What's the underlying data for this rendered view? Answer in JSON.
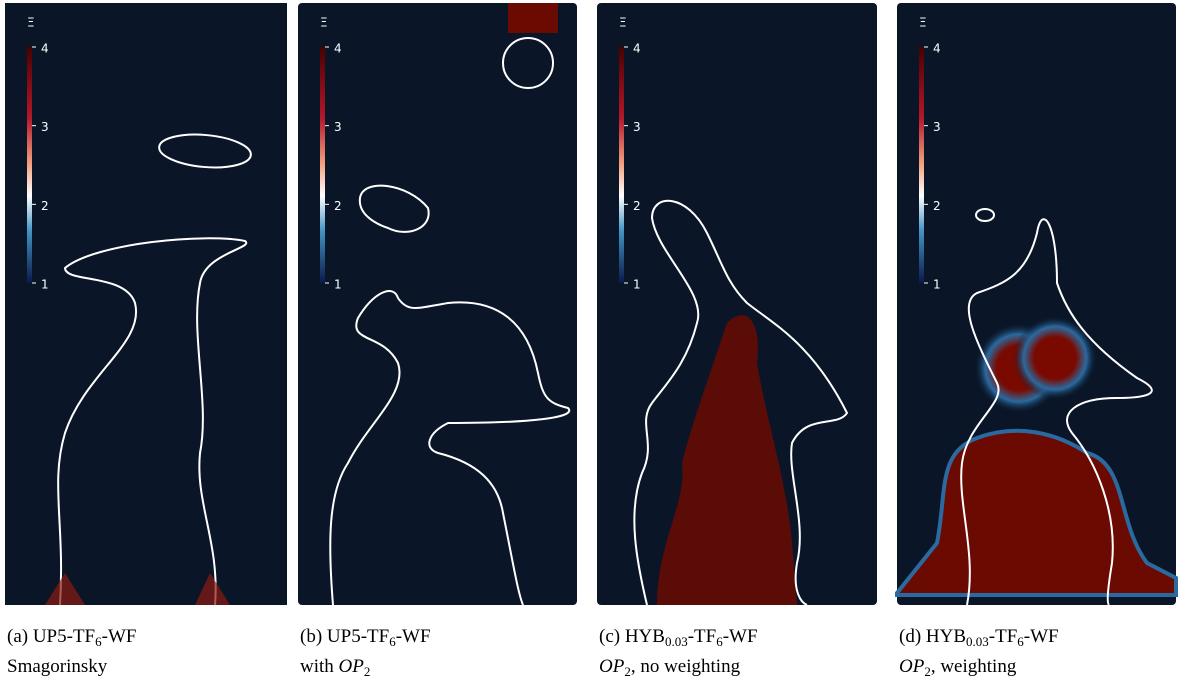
{
  "panels": [
    {
      "colorbar": {
        "label": "Ξ",
        "ticks": [
          4,
          3,
          2,
          1
        ]
      },
      "caption": [
        [
          {
            "text": "(a) UP5-TF"
          },
          {
            "text": "6",
            "sub": true
          },
          {
            "text": "-WF"
          }
        ],
        [
          {
            "text": "Smagorinsky"
          }
        ]
      ]
    },
    {
      "colorbar": {
        "label": "Ξ",
        "ticks": [
          4,
          3,
          2,
          1
        ]
      },
      "caption": [
        [
          {
            "text": "(b) UP5-TF"
          },
          {
            "text": "6",
            "sub": true
          },
          {
            "text": "-WF"
          }
        ],
        [
          {
            "text": "with "
          },
          {
            "text": "OP",
            "italic": true
          },
          {
            "text": "2",
            "sub": true
          }
        ]
      ]
    },
    {
      "colorbar": {
        "label": "Ξ",
        "ticks": [
          4,
          3,
          2,
          1
        ]
      },
      "caption": [
        [
          {
            "text": "(c) HYB"
          },
          {
            "text": "0.03",
            "sub": true
          },
          {
            "text": "-TF"
          },
          {
            "text": "6",
            "sub": true
          },
          {
            "text": "-WF"
          }
        ],
        [
          {
            "text": "OP",
            "italic": true
          },
          {
            "text": "2",
            "sub": true
          },
          {
            "text": ", no weighting"
          }
        ]
      ]
    },
    {
      "colorbar": {
        "label": "Ξ",
        "ticks": [
          4,
          3,
          2,
          1
        ]
      },
      "caption": [
        [
          {
            "text": "(d) HYB"
          },
          {
            "text": "0.03",
            "sub": true
          },
          {
            "text": "-TF"
          },
          {
            "text": "6",
            "sub": true
          },
          {
            "text": "-WF"
          }
        ],
        [
          {
            "text": "OP",
            "italic": true
          },
          {
            "text": "2",
            "sub": true
          },
          {
            "text": ", weighting"
          }
        ]
      ]
    }
  ]
}
